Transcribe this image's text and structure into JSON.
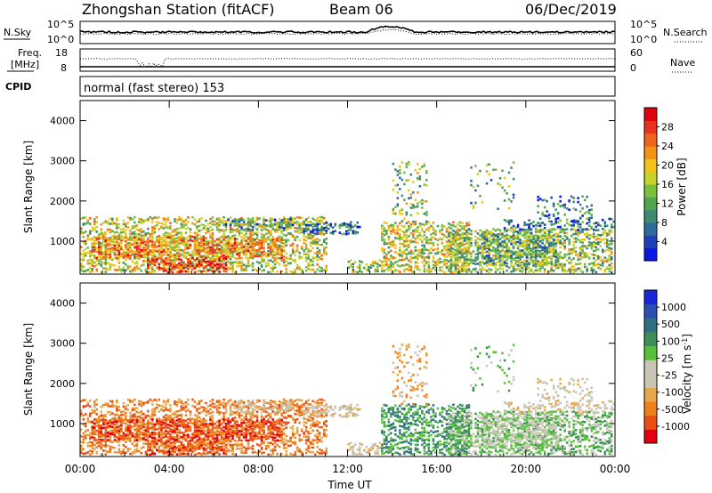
{
  "header": {
    "station": "Zhongshan Station (fitACF)",
    "beam": "Beam 06",
    "date": "06/Dec/2019"
  },
  "panel_nsky": {
    "left_label": "N.Sky",
    "right_label": "N.Search",
    "left_ticks": [
      "10^5",
      "10^0"
    ],
    "right_ticks": [
      "10^5",
      "10^0"
    ]
  },
  "panel_freq": {
    "left_label_1": "Freq.",
    "left_label_2": "[MHz]",
    "right_label": "Nave",
    "left_ticks": [
      "18",
      "8"
    ],
    "right_ticks": [
      "60",
      "0"
    ]
  },
  "cpid": {
    "label": "CPID",
    "text": "normal (fast stereo) 153"
  },
  "chart_data": [
    {
      "type": "heatmap",
      "title": "",
      "ylabel": "Slant Range [km]",
      "xlabel": "",
      "ylim": [
        180,
        4500
      ],
      "yticks": [
        "1000",
        "2000",
        "3000",
        "4000"
      ],
      "xticks": [
        "00:00",
        "04:00",
        "08:00",
        "12:00",
        "16:00",
        "20:00",
        "00:00"
      ],
      "colorbar": {
        "label": "Power [dB]",
        "range": [
          0,
          32
        ],
        "ticks": [
          "28",
          "24",
          "20",
          "16",
          "12",
          "8",
          "4"
        ],
        "colors": [
          "#0a17e6",
          "#1f3fb8",
          "#2c6c9a",
          "#3e8a72",
          "#4fa64c",
          "#7cc03a",
          "#c7d22a",
          "#f2c416",
          "#f59313",
          "#f0651a",
          "#e8321c",
          "#e00010"
        ]
      }
    },
    {
      "type": "heatmap",
      "title": "",
      "ylabel": "Slant Range [km]",
      "xlabel": "Time UT",
      "ylim": [
        180,
        4500
      ],
      "yticks": [
        "1000",
        "2000",
        "3000",
        "4000"
      ],
      "xticks": [
        "00:00",
        "04:00",
        "08:00",
        "12:00",
        "16:00",
        "20:00",
        "00:00"
      ],
      "colorbar": {
        "label": "Velocity [m s",
        "label_sup": "-1",
        "label_end": "]",
        "range": [
          -1000,
          1000
        ],
        "ticks": [
          "1000",
          "500",
          "100",
          "25",
          "-25",
          "-100",
          "-500",
          "-1000"
        ],
        "colors": [
          "#e00010",
          "#ea4d14",
          "#f08018",
          "#e6a84a",
          "#c8c5b5",
          "#c8c5b5",
          "#56c23a",
          "#3e8e58",
          "#2e6f82",
          "#2a4fb0",
          "#1a24d8"
        ]
      }
    }
  ]
}
